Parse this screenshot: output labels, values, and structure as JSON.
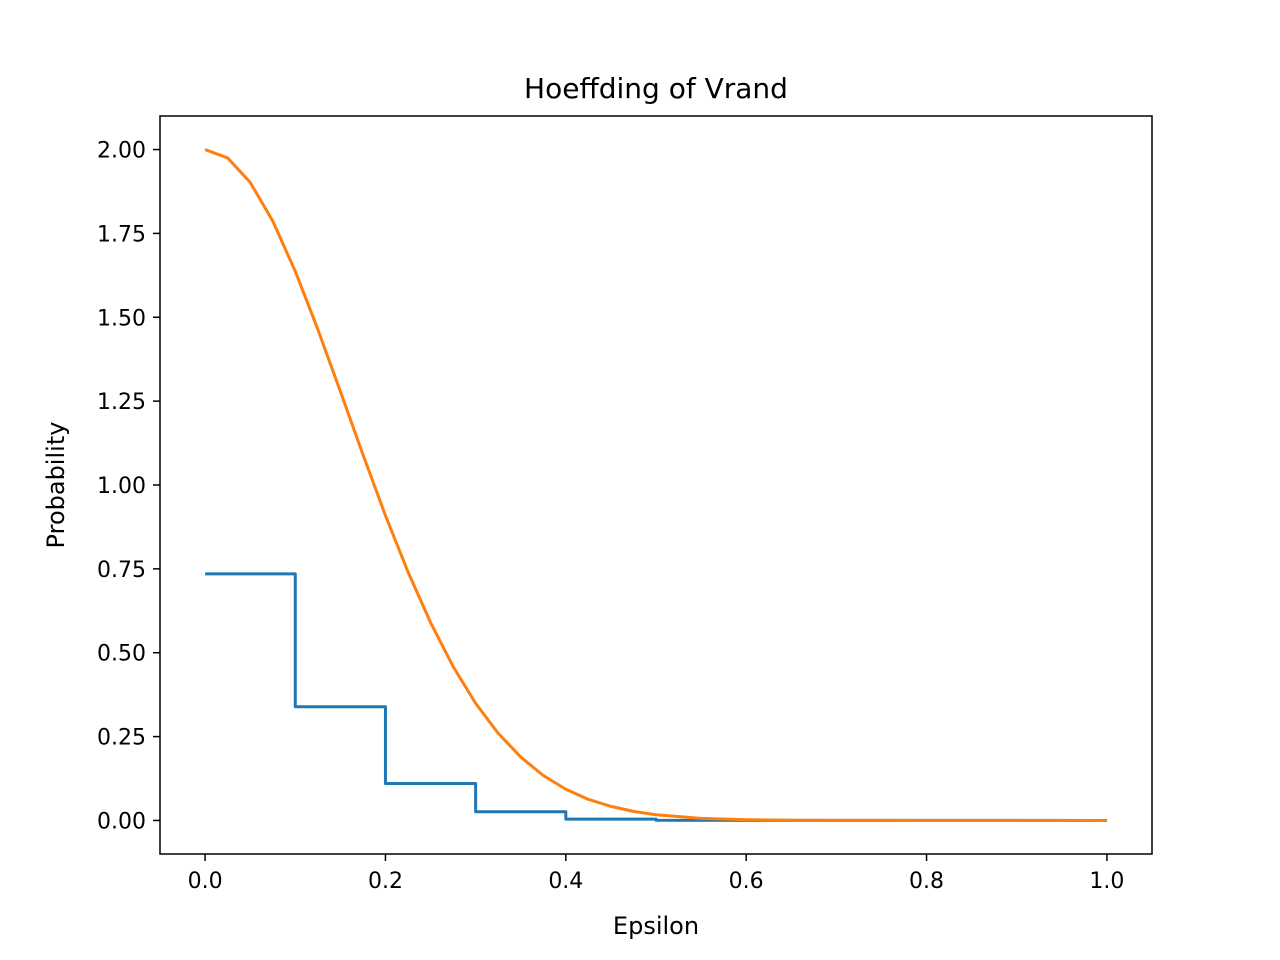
{
  "chart_data": {
    "type": "line",
    "title": "Hoeffding of Vrand",
    "xlabel": "Epsilon",
    "ylabel": "Probability",
    "xlim": [
      -0.05,
      1.05
    ],
    "ylim": [
      -0.1,
      2.1
    ],
    "xticks": [
      0.0,
      0.2,
      0.4,
      0.6,
      0.8,
      1.0
    ],
    "xtick_labels": [
      "0.0",
      "0.2",
      "0.4",
      "0.6",
      "0.8",
      "1.0"
    ],
    "yticks": [
      0.0,
      0.25,
      0.5,
      0.75,
      1.0,
      1.25,
      1.5,
      1.75,
      2.0
    ],
    "ytick_labels": [
      "0.00",
      "0.25",
      "0.50",
      "0.75",
      "1.00",
      "1.25",
      "1.50",
      "1.75",
      "2.00"
    ],
    "grid": false,
    "series": [
      {
        "color": "#1f77b4",
        "style": "step",
        "x": [
          0.0,
          0.1,
          0.1,
          0.2,
          0.2,
          0.3,
          0.3,
          0.4,
          0.4,
          0.5,
          0.5,
          1.0
        ],
        "y": [
          0.735,
          0.735,
          0.339,
          0.339,
          0.11,
          0.11,
          0.026,
          0.026,
          0.004,
          0.004,
          0.0005,
          0.0
        ]
      },
      {
        "color": "#ff7f0e",
        "style": "line",
        "x": [
          0.0,
          0.025,
          0.05,
          0.075,
          0.1,
          0.125,
          0.15,
          0.175,
          0.2,
          0.225,
          0.25,
          0.275,
          0.3,
          0.325,
          0.35,
          0.375,
          0.4,
          0.425,
          0.45,
          0.475,
          0.5,
          0.55,
          0.6,
          0.65,
          0.7,
          0.8,
          0.9,
          1.0
        ],
        "y": [
          2.0,
          1.975,
          1.902,
          1.787,
          1.637,
          1.464,
          1.279,
          1.091,
          0.909,
          0.741,
          0.59,
          0.459,
          0.349,
          0.26,
          0.189,
          0.134,
          0.093,
          0.063,
          0.042,
          0.027,
          0.017,
          0.0063,
          0.0022,
          0.0007,
          0.0002,
          0.0,
          0.0,
          0.0
        ]
      }
    ]
  }
}
